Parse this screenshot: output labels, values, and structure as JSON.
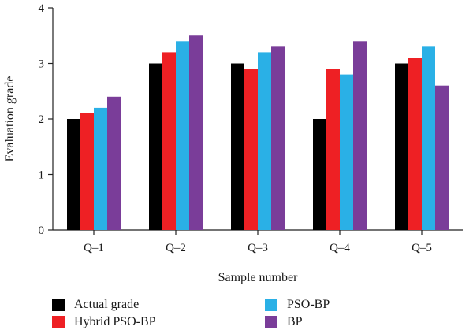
{
  "chart_data": {
    "type": "bar",
    "title": "",
    "xlabel": "Sample number",
    "ylabel": "Evaluation grade",
    "ylim": [
      0,
      4
    ],
    "yticks": [
      "0",
      "1",
      "2",
      "3",
      "4"
    ],
    "categories": [
      "Q–1",
      "Q–2",
      "Q–3",
      "Q–4",
      "Q–5"
    ],
    "grid": false,
    "legend_position": "bottom",
    "series": [
      {
        "name": "Actual grade",
        "color": "#000000",
        "values": [
          2.0,
          3.0,
          3.0,
          2.0,
          3.0
        ]
      },
      {
        "name": "Hybrid PSO-BP",
        "color": "#ee2024",
        "values": [
          2.1,
          3.2,
          2.9,
          2.9,
          3.1
        ]
      },
      {
        "name": "PSO-BP",
        "color": "#2ab0e6",
        "values": [
          2.2,
          3.4,
          3.2,
          2.8,
          3.3
        ]
      },
      {
        "name": "BP",
        "color": "#7a3d99",
        "values": [
          2.4,
          3.5,
          3.3,
          3.4,
          2.6
        ]
      }
    ]
  }
}
